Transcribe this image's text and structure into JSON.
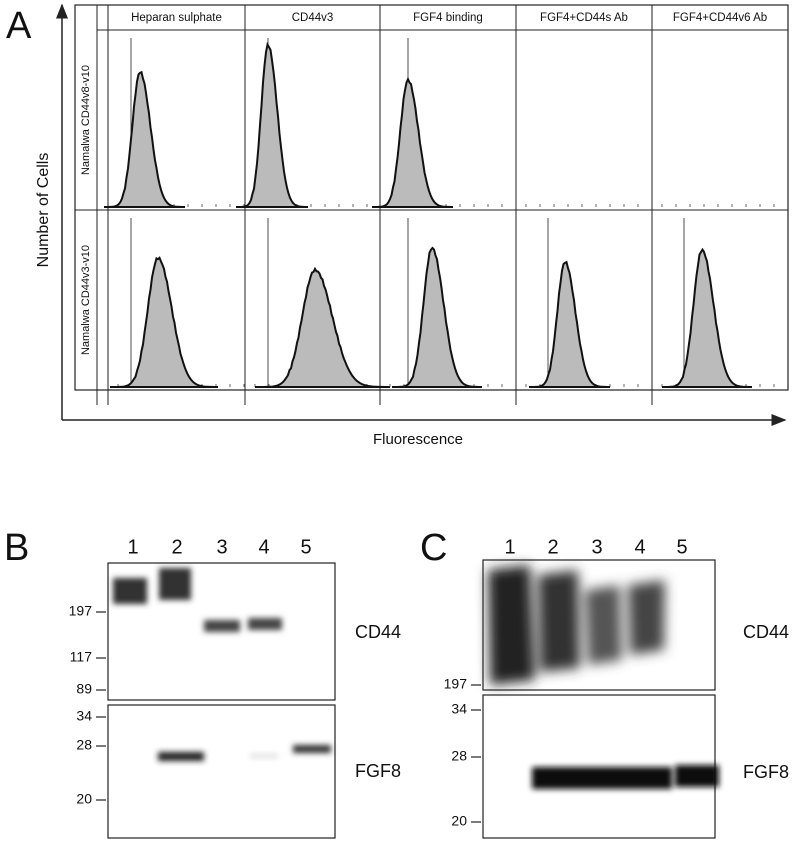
{
  "panel_a": {
    "label": "A",
    "y_axis": "Number of Cells",
    "x_axis": "Fluorescence",
    "columns": [
      "Heparan sulphate",
      "CD44v3",
      "FGF4 binding",
      "FGF4+CD44s Ab",
      "FGF4+CD44v6 Ab"
    ],
    "rows": [
      "Namalwa CD44v8-v10",
      "Namalwa CD44v3-v10"
    ]
  },
  "panel_b": {
    "label": "B",
    "lanes": [
      "1",
      "2",
      "3",
      "4",
      "5"
    ],
    "top_markers": [
      "197",
      "117",
      "89"
    ],
    "bottom_markers": [
      "34",
      "28",
      "20"
    ],
    "top_blot": "CD44",
    "bottom_blot": "FGF8"
  },
  "panel_c": {
    "label": "C",
    "lanes": [
      "1",
      "2",
      "3",
      "4",
      "5"
    ],
    "top_markers": [
      "197"
    ],
    "bottom_markers": [
      "34",
      "28",
      "20"
    ],
    "top_blot": "CD44",
    "bottom_blot": "FGF8"
  }
}
